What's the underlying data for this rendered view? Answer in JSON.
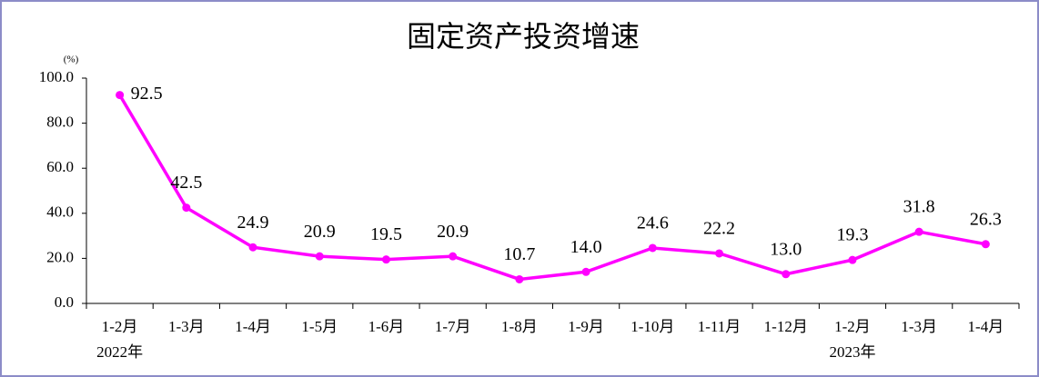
{
  "chart_data": {
    "type": "line",
    "title": "固定资产投资增速",
    "unit": "(%)",
    "categories": [
      "1-2月",
      "1-3月",
      "1-4月",
      "1-5月",
      "1-6月",
      "1-7月",
      "1-8月",
      "1-9月",
      "1-10月",
      "1-11月",
      "1-12月",
      "1-2月",
      "1-3月",
      "1-4月"
    ],
    "year_labels": [
      "2022年",
      null,
      null,
      null,
      null,
      null,
      null,
      null,
      null,
      null,
      null,
      "2023年",
      null,
      null
    ],
    "series": [
      {
        "color": "#ff00ff",
        "values": [
          92.5,
          42.5,
          24.9,
          20.9,
          19.5,
          20.9,
          10.7,
          14.0,
          24.6,
          22.2,
          13.0,
          19.3,
          31.8,
          26.3
        ],
        "value_labels": [
          "92.5",
          "42.5",
          "24.9",
          "20.9",
          "19.5",
          "20.9",
          "10.7",
          "14.0",
          "24.6",
          "22.2",
          "13.0",
          "19.3",
          "31.8",
          "26.3"
        ]
      }
    ],
    "ylim": [
      0,
      100
    ],
    "yticks": [
      {
        "value": 0,
        "label": "0.0"
      },
      {
        "value": 20,
        "label": "20.0"
      },
      {
        "value": 40,
        "label": "40.0"
      },
      {
        "value": 60,
        "label": "60.0"
      },
      {
        "value": 80,
        "label": "80.0"
      },
      {
        "value": 100,
        "label": "100.0"
      }
    ]
  }
}
